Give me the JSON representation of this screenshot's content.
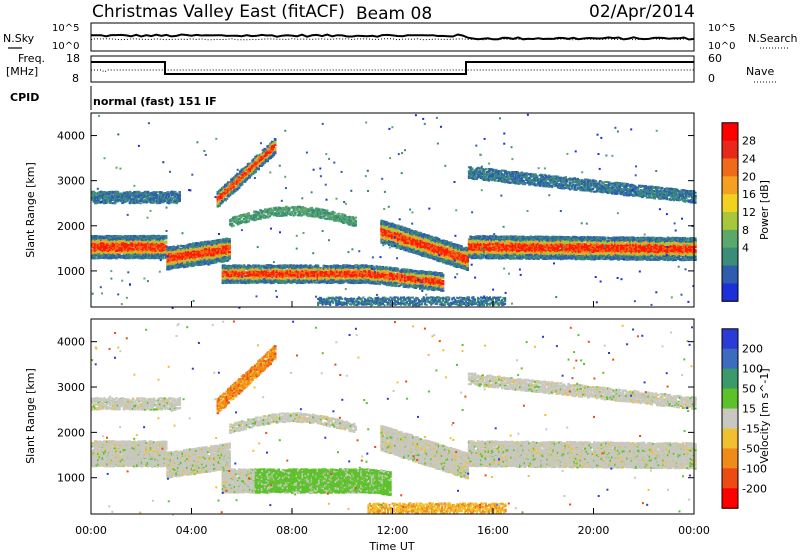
{
  "header": {
    "station": "Christmas Valley East (fitACF)",
    "beam": "Beam 08",
    "date": "02/Apr/2014"
  },
  "noise_panel": {
    "left_label": "N.Sky",
    "right_label": "N.Search",
    "tick_top": "10^5",
    "tick_bottom": "10^0"
  },
  "freq_panel": {
    "left_label_1": "Freq.",
    "left_label_2": "[MHz]",
    "right_label": "Nave",
    "left_ticks": [
      "18",
      "8"
    ],
    "right_ticks": [
      "60",
      "0"
    ]
  },
  "cpid": {
    "label": "CPID",
    "mode": "normal (fast) 151 IF"
  },
  "chart_data": [
    {
      "type": "heatmap",
      "title": "Power",
      "ylabel": "Slant Range [km]",
      "xlabel": "Time UT",
      "colorbar_label": "Power [dB]",
      "colorbar_ticks": [
        "4",
        "8",
        "12",
        "16",
        "20",
        "24",
        "28"
      ],
      "colorbar_colors": [
        "#1c2fd9",
        "#2e5db0",
        "#3b8c78",
        "#5aa86a",
        "#a6c83a",
        "#f0d21f",
        "#f4a020",
        "#f06a1c",
        "#e8281a",
        "#ff0000"
      ],
      "yticks": [
        "1000",
        "2000",
        "3000",
        "4000"
      ],
      "xticks": [
        "00:00",
        "04:00",
        "08:00",
        "12:00",
        "16:00",
        "20:00",
        "00:00"
      ],
      "ylim": [
        200,
        4500
      ],
      "xlim_hours": [
        0,
        24
      ]
    },
    {
      "type": "heatmap",
      "title": "Velocity",
      "ylabel": "Slant Range [km]",
      "xlabel": "Time UT",
      "colorbar_label": "Velocity [m s^-1]",
      "colorbar_ticks": [
        "200",
        "100",
        "50",
        "15",
        "-15",
        "-50",
        "-100",
        "-200"
      ],
      "colorbar_colors": [
        "#2b3bd6",
        "#3c6cc0",
        "#3c9a6a",
        "#5dc22a",
        "#c8c8c0",
        "#f0c030",
        "#f08a18",
        "#ee4a14",
        "#ff0000"
      ],
      "yticks": [
        "1000",
        "2000",
        "3000",
        "4000"
      ],
      "xticks": [
        "00:00",
        "04:00",
        "08:00",
        "12:00",
        "16:00",
        "20:00",
        "00:00"
      ],
      "ylim": [
        200,
        4500
      ],
      "xlim_hours": [
        0,
        24
      ]
    }
  ]
}
